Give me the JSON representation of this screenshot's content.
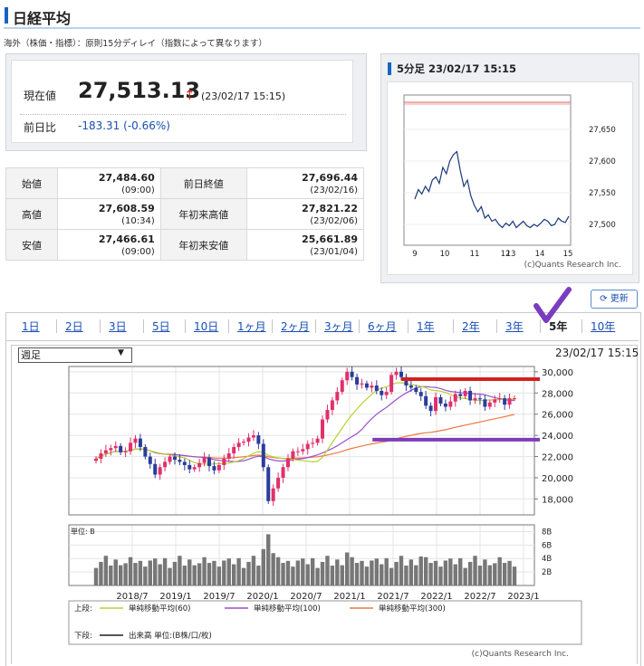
{
  "title": "日経平均",
  "note": "海外（株価・指標）：原則15分ディレイ（指数によって異なります）",
  "current": {
    "label": "現在値",
    "value": "27,513.13",
    "arrow": "↑",
    "time": "(23/02/17 15:15)"
  },
  "change": {
    "label": "前日比",
    "value": "-183.31 (-0.66%)"
  },
  "quotes": [
    [
      {
        "label": "始値",
        "value": "27,484.60",
        "time": "(09:00)"
      },
      {
        "label": "前日終値",
        "value": "27,696.44",
        "time": "(23/02/16)"
      }
    ],
    [
      {
        "label": "高値",
        "value": "27,608.59",
        "time": "(10:34)"
      },
      {
        "label": "年初来高値",
        "value": "27,821.22",
        "time": "(23/02/06)"
      }
    ],
    [
      {
        "label": "安値",
        "value": "27,466.61",
        "time": "(09:00)"
      },
      {
        "label": "年初来安値",
        "value": "25,661.89",
        "time": "(23/01/04)"
      }
    ]
  ],
  "mini": {
    "title": "5分足 23/02/17 15:15",
    "credit": "(c)Quants Research Inc.",
    "y_ticks": [
      "27,650",
      "27,600",
      "27,550",
      "27,500"
    ],
    "x_ticks": [
      "9",
      "10",
      "11",
      "12",
      "13",
      "14",
      "15"
    ]
  },
  "refresh_label": "更新",
  "tabs": [
    "1日",
    "2日",
    "3日",
    "5日",
    "10日",
    "1ヶ月",
    "2ヶ月",
    "3ヶ月",
    "6ヶ月",
    "1年",
    "2年",
    "3年",
    "5年",
    "10年"
  ],
  "selected_tab": "5年",
  "period": "週足",
  "big_time": "23/02/17 15:15",
  "chart_data": {
    "type": "line",
    "title": "",
    "x": [
      "2018/7",
      "2019/1",
      "2019/7",
      "2020/1",
      "2020/7",
      "2021/1",
      "2021/7",
      "2022/1",
      "2022/7",
      "2023/1"
    ],
    "price_ticks": [
      "30,000",
      "28,000",
      "26,000",
      "24,000",
      "22,000",
      "20,000",
      "18,000"
    ],
    "volume_ticks": [
      "8B",
      "6B",
      "4B",
      "2B"
    ],
    "volume_unit": "単位: B",
    "ylim": [
      16500,
      30500
    ],
    "series": [
      {
        "name": "単純移動平均(60)",
        "color": "#b5d334"
      },
      {
        "name": "単純移動平均(100)",
        "color": "#9b4fcf"
      },
      {
        "name": "単純移動平均(300)",
        "color": "#f07840"
      }
    ],
    "legend_upper": "上段:",
    "legend_lower": "下段:",
    "legend_volume": "出来高 単位:(B株/口/枚)",
    "credit": "(c)Quants Research Inc.",
    "price": [
      21800,
      22300,
      22600,
      22800,
      23000,
      22400,
      22500,
      23300,
      23700,
      22900,
      22000,
      21300,
      20300,
      21000,
      21500,
      22000,
      21700,
      21500,
      21200,
      20800,
      21000,
      21400,
      21900,
      21100,
      20700,
      21200,
      21800,
      22300,
      22900,
      23300,
      23400,
      23800,
      24000,
      23200,
      21000,
      17800,
      19000,
      20000,
      21000,
      21800,
      22500,
      22500,
      22700,
      23200,
      23300,
      23700,
      25500,
      26400,
      27300,
      28100,
      29200,
      30000,
      29500,
      28800,
      28900,
      28500,
      28700,
      28200,
      27800,
      28100,
      29700,
      30000,
      29500,
      28700,
      28500,
      28100,
      27700,
      26800,
      26300,
      27600,
      27000,
      26700,
      27200,
      27900,
      27700,
      28200,
      27300,
      27500,
      27400,
      26700,
      27100,
      27400,
      27500,
      26900,
      27500,
      27500
    ],
    "annotations": [
      {
        "color": "#d42020",
        "y": 29300
      },
      {
        "color": "#7d3cb8",
        "y": 23600
      }
    ]
  }
}
